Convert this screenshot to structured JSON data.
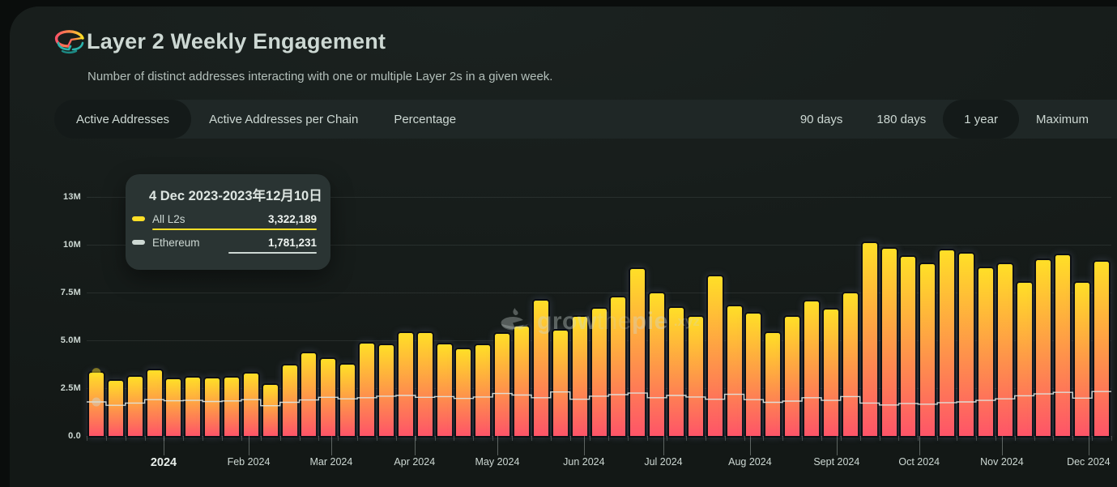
{
  "header": {
    "title": "Layer 2 Weekly Engagement",
    "subtitle": "Number of distinct addresses interacting with one or multiple Layer 2s in a given week."
  },
  "tabs": {
    "items": [
      "Active Addresses",
      "Active Addresses per Chain",
      "Percentage"
    ],
    "selected": "Active Addresses"
  },
  "timeranges": {
    "items": [
      "90 days",
      "180 days",
      "1 year",
      "Maximum"
    ],
    "selected": "1 year"
  },
  "watermark": {
    "part1": "grow",
    "part2": "the",
    "part3": "pie",
    "suffix": ".xyz"
  },
  "tooltip": {
    "title": "4 Dec 2023-2023年12月10日",
    "rows": [
      {
        "label": "All L2s",
        "value": "3,322,189",
        "color": "#FFDF27",
        "bar_pct": 100
      },
      {
        "label": "Ethereum",
        "value": "1,781,231",
        "color": "#CDD8D3",
        "bar_pct": 53.6
      }
    ]
  },
  "colors": {
    "accent_yellow": "#FFDF27",
    "accent_pink": "#FE5468",
    "text": "#CDD8D3"
  },
  "chart_data": {
    "type": "bar",
    "title": "Layer 2 Weekly Engagement",
    "x_unit": "week",
    "x_start_week": "2023-12-04",
    "weeks": 53,
    "grid": true,
    "y_axis_max_millions": 12.5,
    "y_tick_step_millions": 2.5,
    "y_tick_labels": [
      "0.0",
      "2.5M",
      "5.0M",
      "7.5M",
      "10M",
      "13M"
    ],
    "months": [
      {
        "label": "2024",
        "week_x": 3.98,
        "bold": true
      },
      {
        "label": "Feb 2024",
        "week_x": 8.38
      },
      {
        "label": "Mar 2024",
        "week_x": 12.65
      },
      {
        "label": "Apr 2024",
        "week_x": 16.96
      },
      {
        "label": "May 2024",
        "week_x": 21.24
      },
      {
        "label": "Jun 2024",
        "week_x": 25.72
      },
      {
        "label": "Jul 2024",
        "week_x": 29.83
      },
      {
        "label": "Aug 2024",
        "week_x": 34.31
      },
      {
        "label": "Sept 2024",
        "week_x": 38.79
      },
      {
        "label": "Oct 2024",
        "week_x": 43.06
      },
      {
        "label": "Nov 2024",
        "week_x": 47.34
      },
      {
        "label": "Dec 2024",
        "week_x": 51.82
      }
    ],
    "series": [
      {
        "name": "All L2s",
        "type": "column",
        "gradient": [
          "#FFDF27",
          "#FE5468"
        ],
        "values_millions": [
          3.32,
          2.88,
          3.1,
          3.45,
          2.95,
          3.06,
          3.01,
          3.07,
          3.28,
          2.65,
          3.69,
          4.33,
          4.03,
          3.72,
          4.83,
          4.76,
          5.38,
          5.38,
          4.78,
          4.55,
          4.75,
          5.34,
          5.72,
          7.08,
          5.51,
          6.22,
          6.66,
          7.24,
          8.74,
          7.46,
          6.68,
          6.24,
          8.36,
          6.78,
          6.4,
          5.37,
          6.22,
          7.02,
          6.6,
          7.46,
          10.09,
          9.79,
          9.35,
          8.97,
          9.7,
          9.53,
          8.76,
          8.99,
          8.01,
          9.18,
          9.46,
          8.01,
          9.11
        ]
      },
      {
        "name": "Ethereum",
        "type": "step-line",
        "color": "#CDD8D3",
        "values_millions": [
          1.78,
          1.6,
          1.72,
          1.9,
          1.84,
          1.86,
          1.8,
          1.83,
          1.9,
          1.58,
          1.76,
          1.88,
          2.02,
          1.94,
          2.0,
          2.08,
          2.12,
          2.02,
          2.06,
          1.96,
          2.04,
          2.22,
          2.14,
          2.0,
          2.3,
          1.92,
          2.08,
          2.16,
          2.24,
          2.0,
          2.12,
          2.04,
          1.92,
          2.18,
          1.9,
          1.76,
          1.82,
          2.0,
          1.86,
          2.06,
          1.72,
          1.62,
          1.7,
          1.66,
          1.74,
          1.78,
          1.86,
          1.94,
          2.1,
          2.2,
          2.28,
          1.98,
          2.32
        ]
      }
    ],
    "hovered_point": {
      "week_index": 0,
      "date_label": "4 Dec 2023-2023年12月10日",
      "all_l2s": 3322189,
      "ethereum": 1781231
    }
  }
}
